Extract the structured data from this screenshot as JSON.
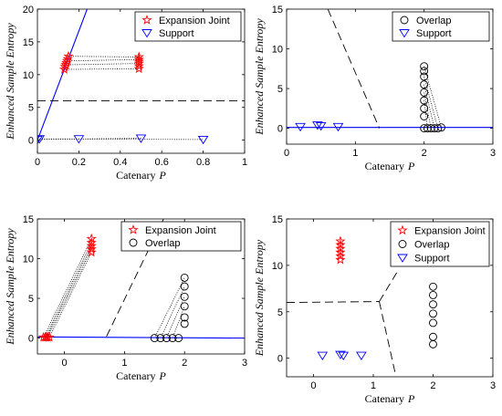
{
  "chart_data": [
    {
      "type": "scatter",
      "xlabel": "Catenary",
      "xlabel_var": "P",
      "ylabel": "Enhanced Sample Entropy",
      "xlim": [
        0,
        1
      ],
      "ylim": [
        -2,
        20
      ],
      "xticks": [
        "0",
        "0.2",
        "0.4",
        "0.6",
        "0.8",
        "1"
      ],
      "yticks": [
        "0",
        "5",
        "10",
        "15",
        "20"
      ],
      "legend_position": "top-right",
      "series": [
        {
          "name": "Expansion Joint",
          "marker": "star",
          "color": "#ff0000",
          "points": [
            [
              0.13,
              10.8
            ],
            [
              0.133,
              11.2
            ],
            [
              0.136,
              11.5
            ],
            [
              0.14,
              11.8
            ],
            [
              0.143,
              12.1
            ],
            [
              0.146,
              12.4
            ],
            [
              0.15,
              12.8
            ],
            [
              0.49,
              10.9
            ],
            [
              0.49,
              11.3
            ],
            [
              0.49,
              11.7
            ],
            [
              0.49,
              12.0
            ],
            [
              0.49,
              12.3
            ],
            [
              0.49,
              12.7
            ]
          ]
        },
        {
          "name": "Support",
          "marker": "triangle-down",
          "color": "#0000ff",
          "points": [
            [
              0.0,
              0.1
            ],
            [
              0.01,
              0.2
            ],
            [
              0.2,
              0.2
            ],
            [
              0.5,
              0.3
            ],
            [
              0.8,
              0.1
            ]
          ]
        }
      ],
      "pairing_lines": [
        [
          [
            0.13,
            10.8
          ],
          [
            0.49,
            10.9
          ]
        ],
        [
          [
            0.136,
            11.5
          ],
          [
            0.49,
            11.7
          ]
        ],
        [
          [
            0.143,
            12.1
          ],
          [
            0.49,
            12.3
          ]
        ],
        [
          [
            0.15,
            12.8
          ],
          [
            0.49,
            12.7
          ]
        ],
        [
          [
            0.01,
            0.2
          ],
          [
            0.8,
            0.1
          ]
        ],
        [
          [
            0.0,
            0.1
          ],
          [
            0.5,
            0.3
          ]
        ]
      ],
      "boundary_solid": [
        [
          0.0,
          0.0
        ],
        [
          0.24,
          20
        ]
      ],
      "boundary_dashed": [
        [
          0,
          6
        ],
        [
          1,
          6
        ]
      ]
    },
    {
      "type": "scatter",
      "xlabel": "Catenary",
      "xlabel_var": "P",
      "ylabel": "Enhanced Sample Entropy",
      "xlim": [
        0,
        3
      ],
      "ylim": [
        -2,
        15
      ],
      "xticks": [
        "0",
        "1",
        "2",
        "3"
      ],
      "yticks": [
        "0",
        "5",
        "10",
        "15"
      ],
      "legend_position": "top-right",
      "series": [
        {
          "name": "Overlap",
          "marker": "circle",
          "color": "#000000",
          "points": [
            [
              2.0,
              0.0
            ],
            [
              2.05,
              0.0
            ],
            [
              2.1,
              0.0
            ],
            [
              2.15,
              0.0
            ],
            [
              2.2,
              0.0
            ],
            [
              2.25,
              0.1
            ],
            [
              2.0,
              1.5
            ],
            [
              2.0,
              2.5
            ],
            [
              2.0,
              3.5
            ],
            [
              2.0,
              4.5
            ],
            [
              2.0,
              5.5
            ],
            [
              2.0,
              6.5
            ],
            [
              2.0,
              7.2
            ],
            [
              2.0,
              7.8
            ]
          ]
        },
        {
          "name": "Support",
          "marker": "triangle-down",
          "color": "#0000ff",
          "points": [
            [
              0.2,
              0.2
            ],
            [
              0.45,
              0.4
            ],
            [
              0.5,
              0.3
            ],
            [
              0.75,
              0.2
            ]
          ]
        }
      ],
      "pairing_lines": [
        [
          [
            2.0,
            7.8
          ],
          [
            2.25,
            0.1
          ]
        ],
        [
          [
            2.0,
            6.5
          ],
          [
            2.2,
            0.0
          ]
        ],
        [
          [
            2.0,
            5.5
          ],
          [
            2.15,
            0.0
          ]
        ],
        [
          [
            2.0,
            4.5
          ],
          [
            2.1,
            0.0
          ]
        ],
        [
          [
            2.0,
            3.5
          ],
          [
            2.05,
            0.0
          ]
        ]
      ],
      "boundary_solid": [
        [
          0,
          0.1
        ],
        [
          3,
          0.1
        ]
      ],
      "boundary_dashed": [
        [
          0.6,
          15
        ],
        [
          1.35,
          0
        ]
      ]
    },
    {
      "type": "scatter",
      "xlabel": "Catenary",
      "xlabel_var": "P",
      "ylabel": "Enhanced Sample Entropy",
      "xlim": [
        -0.45,
        3
      ],
      "ylim": [
        -2,
        15
      ],
      "xticks": [
        "0",
        "1",
        "2",
        "3"
      ],
      "yticks": [
        "0",
        "5",
        "10",
        "15"
      ],
      "legend_position": "top-right",
      "series": [
        {
          "name": "Expansion Joint",
          "marker": "star",
          "color": "#ff0000",
          "points": [
            [
              -0.35,
              0.1
            ],
            [
              -0.32,
              0.1
            ],
            [
              -0.3,
              0.1
            ],
            [
              -0.28,
              0.1
            ],
            [
              -0.25,
              0.1
            ],
            [
              0.45,
              10.8
            ],
            [
              0.45,
              11.2
            ],
            [
              0.45,
              11.6
            ],
            [
              0.45,
              12.0
            ],
            [
              0.45,
              12.5
            ]
          ]
        },
        {
          "name": "Overlap",
          "marker": "circle",
          "color": "#000000",
          "points": [
            [
              1.5,
              0.0
            ],
            [
              1.6,
              0.0
            ],
            [
              1.7,
              0.0
            ],
            [
              1.8,
              0.0
            ],
            [
              1.9,
              0.0
            ],
            [
              2.0,
              1.8
            ],
            [
              2.0,
              2.6
            ],
            [
              2.0,
              4.0
            ],
            [
              2.0,
              5.2
            ],
            [
              2.0,
              6.5
            ],
            [
              2.0,
              7.6
            ]
          ]
        }
      ],
      "pairing_lines": [
        [
          [
            -0.35,
            0.1
          ],
          [
            0.45,
            12.5
          ]
        ],
        [
          [
            -0.32,
            0.1
          ],
          [
            0.45,
            12.0
          ]
        ],
        [
          [
            -0.3,
            0.1
          ],
          [
            0.45,
            11.6
          ]
        ],
        [
          [
            -0.28,
            0.1
          ],
          [
            0.45,
            11.2
          ]
        ],
        [
          [
            -0.25,
            0.1
          ],
          [
            0.45,
            10.8
          ]
        ],
        [
          [
            1.5,
            0.0
          ],
          [
            2.0,
            7.6
          ]
        ],
        [
          [
            1.6,
            0.0
          ],
          [
            2.0,
            6.5
          ]
        ],
        [
          [
            1.7,
            0.0
          ],
          [
            2.0,
            5.2
          ]
        ],
        [
          [
            1.8,
            0.0
          ],
          [
            2.0,
            4.0
          ]
        ]
      ],
      "boundary_solid": [
        [
          -0.45,
          0.15
        ],
        [
          3,
          0.0
        ]
      ],
      "boundary_dashed": [
        [
          0.7,
          0.2
        ],
        [
          1.65,
          15
        ]
      ]
    },
    {
      "type": "scatter",
      "xlabel": "Catenary",
      "xlabel_var": "P",
      "ylabel": "Enhanced Sample Entropy",
      "xlim": [
        -0.45,
        3
      ],
      "ylim": [
        -2,
        15
      ],
      "xticks": [
        "0",
        "1",
        "2",
        "3"
      ],
      "yticks": [
        "0",
        "5",
        "10",
        "15"
      ],
      "legend_position": "top-right",
      "series": [
        {
          "name": "Expansion Joint",
          "marker": "star",
          "color": "#ff0000",
          "points": [
            [
              0.45,
              10.6
            ],
            [
              0.45,
              11.0
            ],
            [
              0.45,
              11.4
            ],
            [
              0.45,
              11.8
            ],
            [
              0.45,
              12.2
            ],
            [
              0.45,
              12.6
            ]
          ]
        },
        {
          "name": "Overlap",
          "marker": "circle",
          "color": "#000000",
          "points": [
            [
              2.0,
              1.5
            ],
            [
              2.0,
              2.3
            ],
            [
              2.0,
              3.8
            ],
            [
              2.0,
              4.8
            ],
            [
              2.0,
              5.8
            ],
            [
              2.0,
              6.8
            ],
            [
              2.0,
              7.7
            ]
          ]
        },
        {
          "name": "Support",
          "marker": "triangle-down",
          "color": "#0000ff",
          "points": [
            [
              0.15,
              0.3
            ],
            [
              0.45,
              0.4
            ],
            [
              0.5,
              0.3
            ],
            [
              0.8,
              0.3
            ]
          ]
        }
      ],
      "boundary_dashed_segments": [
        [
          [
            -0.45,
            6.0
          ],
          [
            1.1,
            6.1
          ]
        ],
        [
          [
            1.1,
            6.1
          ],
          [
            1.4,
            9.3
          ]
        ],
        [
          [
            1.1,
            6.1
          ],
          [
            1.38,
            -2
          ]
        ]
      ]
    }
  ]
}
